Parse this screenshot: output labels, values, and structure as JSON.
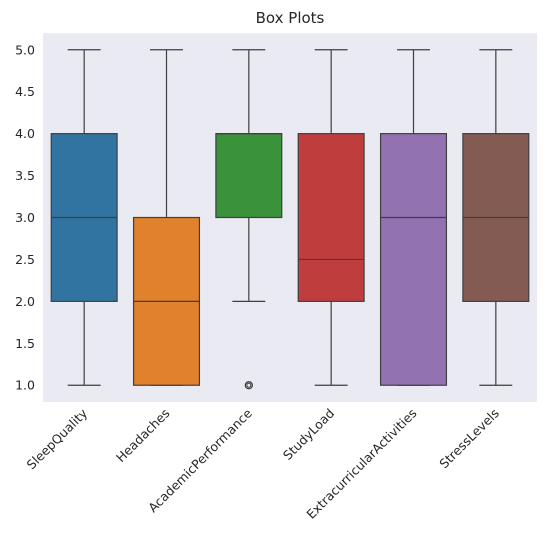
{
  "chart_data": {
    "type": "box",
    "title": "Box Plots",
    "xlabel": "",
    "ylabel": "",
    "ylim": [
      0.8,
      5.2
    ],
    "yticks": [
      1.0,
      1.5,
      2.0,
      2.5,
      3.0,
      3.5,
      4.0,
      4.5,
      5.0
    ],
    "ytick_labels": [
      "1.0",
      "1.5",
      "2.0",
      "2.5",
      "3.0",
      "3.5",
      "4.0",
      "4.5",
      "5.0"
    ],
    "grid": false,
    "background": "#eaeaf2",
    "categories": [
      "SleepQuality",
      "Headaches",
      "AcademicPerformance",
      "StudyLoad",
      "ExtracurricularActivities",
      "StressLevels"
    ],
    "boxes": [
      {
        "name": "SleepQuality",
        "whisker_low": 1,
        "q1": 2,
        "median": 3,
        "q3": 4,
        "whisker_high": 5,
        "outliers": [],
        "color": "#3274a1"
      },
      {
        "name": "Headaches",
        "whisker_low": 1,
        "q1": 1,
        "median": 2,
        "q3": 3,
        "whisker_high": 5,
        "outliers": [],
        "color": "#e1812c"
      },
      {
        "name": "AcademicPerformance",
        "whisker_low": 2,
        "q1": 3,
        "median": 4,
        "q3": 4,
        "whisker_high": 5,
        "outliers": [
          1
        ],
        "color": "#3a923a"
      },
      {
        "name": "StudyLoad",
        "whisker_low": 1,
        "q1": 2,
        "median": 2.5,
        "q3": 4,
        "whisker_high": 5,
        "outliers": [],
        "color": "#c03d3e"
      },
      {
        "name": "ExtracurricularActivities",
        "whisker_low": 1,
        "q1": 1,
        "median": 3,
        "q3": 4,
        "whisker_high": 5,
        "outliers": [],
        "color": "#9372b2"
      },
      {
        "name": "StressLevels",
        "whisker_low": 1,
        "q1": 2,
        "median": 3,
        "q3": 4,
        "whisker_high": 5,
        "outliers": [],
        "color": "#845b53"
      }
    ],
    "line_color": "#3f3f3f"
  }
}
